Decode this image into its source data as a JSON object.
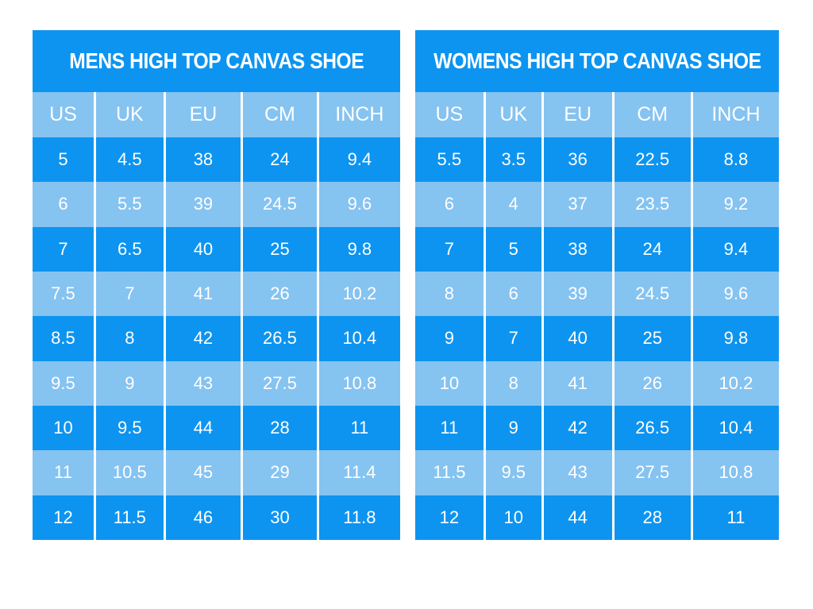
{
  "colors": {
    "bright_blue": "#0d94f0",
    "light_blue": "#85c3f1",
    "text_white": "#ffffff",
    "page_background": "#ffffff"
  },
  "chart_data": [
    {
      "type": "table",
      "title": "MENS HIGH TOP CANVAS SHOE",
      "columns": [
        "US",
        "UK",
        "EU",
        "CM",
        "INCH"
      ],
      "rows": [
        [
          "5",
          "4.5",
          "38",
          "24",
          "9.4"
        ],
        [
          "6",
          "5.5",
          "39",
          "24.5",
          "9.6"
        ],
        [
          "7",
          "6.5",
          "40",
          "25",
          "9.8"
        ],
        [
          "7.5",
          "7",
          "41",
          "26",
          "10.2"
        ],
        [
          "8.5",
          "8",
          "42",
          "26.5",
          "10.4"
        ],
        [
          "9.5",
          "9",
          "43",
          "27.5",
          "10.8"
        ],
        [
          "10",
          "9.5",
          "44",
          "28",
          "11"
        ],
        [
          "11",
          "10.5",
          "45",
          "29",
          "11.4"
        ],
        [
          "12",
          "11.5",
          "46",
          "30",
          "11.8"
        ]
      ],
      "layout": {
        "row_striping": [
          "bright",
          "light"
        ],
        "dividers": "white-vertical-lines"
      }
    },
    {
      "type": "table",
      "title": "WOMENS HIGH TOP CANVAS SHOE",
      "columns": [
        "US",
        "UK",
        "EU",
        "CM",
        "INCH"
      ],
      "rows": [
        [
          "5.5",
          "3.5",
          "36",
          "22.5",
          "8.8"
        ],
        [
          "6",
          "4",
          "37",
          "23.5",
          "9.2"
        ],
        [
          "7",
          "5",
          "38",
          "24",
          "9.4"
        ],
        [
          "8",
          "6",
          "39",
          "24.5",
          "9.6"
        ],
        [
          "9",
          "7",
          "40",
          "25",
          "9.8"
        ],
        [
          "10",
          "8",
          "41",
          "26",
          "10.2"
        ],
        [
          "11",
          "9",
          "42",
          "26.5",
          "10.4"
        ],
        [
          "11.5",
          "9.5",
          "43",
          "27.5",
          "10.8"
        ],
        [
          "12",
          "10",
          "44",
          "28",
          "11"
        ]
      ],
      "layout": {
        "row_striping": [
          "bright",
          "light"
        ],
        "dividers": "white-vertical-lines"
      }
    }
  ]
}
